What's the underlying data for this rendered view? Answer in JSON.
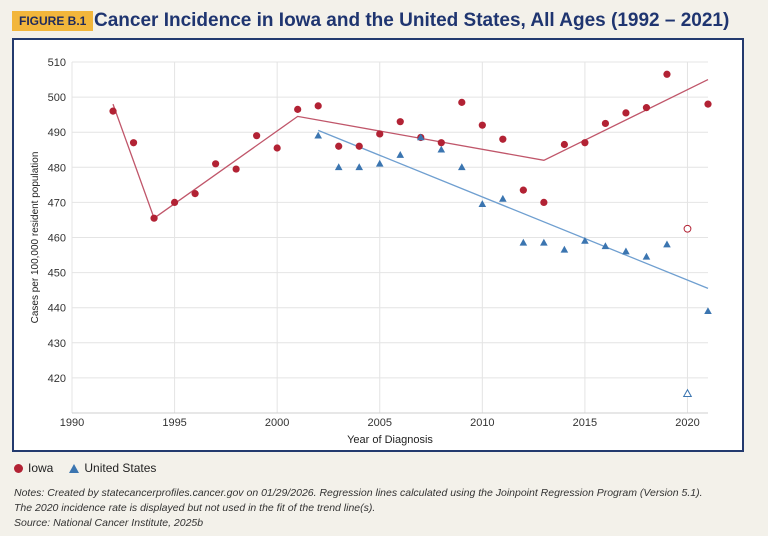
{
  "header": {
    "badge": "FIGURE B.1",
    "title": "Cancer Incidence in Iowa and the United States, All Ages (1992 – 2021)"
  },
  "legend": {
    "iowa": "Iowa",
    "us": "United States"
  },
  "notes": {
    "line1": "Notes: Created by statecancerprofiles.cancer.gov on 01/29/2026. Regression lines calculated using the Joinpoint Regression Program (Version 5.1).",
    "line2": "The 2020 incidence rate is displayed but not used in the fit of the trend line(s).",
    "line3": "Source: National Cancer Institute, 2025b"
  },
  "colors": {
    "iowa": "#b22234",
    "iowa_line": "#c0566a",
    "us": "#3b75b0",
    "us_line": "#6f9fd0",
    "frame": "#233a6e"
  },
  "chart_data": {
    "type": "scatter",
    "xlabel": "Year of Diagnosis",
    "ylabel": "Cases per 100,000 resident population",
    "xlim": [
      1990,
      2021
    ],
    "ylim": [
      410,
      510
    ],
    "xticks": [
      1990,
      1995,
      2000,
      2005,
      2010,
      2015,
      2020
    ],
    "yticks": [
      420,
      430,
      440,
      450,
      460,
      470,
      480,
      490,
      500,
      510
    ],
    "grid": true,
    "legend_position": "bottom-left",
    "series": [
      {
        "name": "Iowa",
        "marker": "circle",
        "points": [
          [
            1992,
            496
          ],
          [
            1993,
            487
          ],
          [
            1994,
            465.5
          ],
          [
            1995,
            470
          ],
          [
            1996,
            472.5
          ],
          [
            1997,
            481
          ],
          [
            1998,
            479.5
          ],
          [
            1999,
            489
          ],
          [
            2000,
            485.5
          ],
          [
            2001,
            496.5
          ],
          [
            2002,
            497.5
          ],
          [
            2003,
            486
          ],
          [
            2004,
            486
          ],
          [
            2005,
            489.5
          ],
          [
            2006,
            493
          ],
          [
            2007,
            488.5
          ],
          [
            2008,
            487
          ],
          [
            2009,
            498.5
          ],
          [
            2010,
            492
          ],
          [
            2011,
            488
          ],
          [
            2012,
            473.5
          ],
          [
            2013,
            470
          ],
          [
            2014,
            486.5
          ],
          [
            2015,
            487
          ],
          [
            2016,
            492.5
          ],
          [
            2017,
            495.5
          ],
          [
            2018,
            497
          ],
          [
            2019,
            506.5
          ],
          [
            2021,
            498
          ]
        ],
        "excluded_point": [
          2020,
          462.5
        ],
        "trend": [
          [
            1992,
            498
          ],
          [
            1994,
            465.5
          ],
          [
            2001,
            494.5
          ],
          [
            2013,
            482
          ],
          [
            2021,
            505
          ]
        ]
      },
      {
        "name": "United States",
        "marker": "triangle",
        "points": [
          [
            2002,
            489
          ],
          [
            2003,
            480
          ],
          [
            2004,
            480
          ],
          [
            2005,
            481
          ],
          [
            2006,
            483.5
          ],
          [
            2007,
            488.5
          ],
          [
            2008,
            485
          ],
          [
            2009,
            480
          ],
          [
            2010,
            469.5
          ],
          [
            2011,
            471
          ],
          [
            2012,
            458.5
          ],
          [
            2013,
            458.5
          ],
          [
            2014,
            456.5
          ],
          [
            2015,
            459
          ],
          [
            2016,
            457.5
          ],
          [
            2017,
            456
          ],
          [
            2018,
            454.5
          ],
          [
            2019,
            458
          ],
          [
            2021,
            439
          ]
        ],
        "excluded_point": [
          2020,
          415.5
        ],
        "trend": [
          [
            2002,
            490.5
          ],
          [
            2021,
            445.5
          ]
        ]
      }
    ]
  }
}
